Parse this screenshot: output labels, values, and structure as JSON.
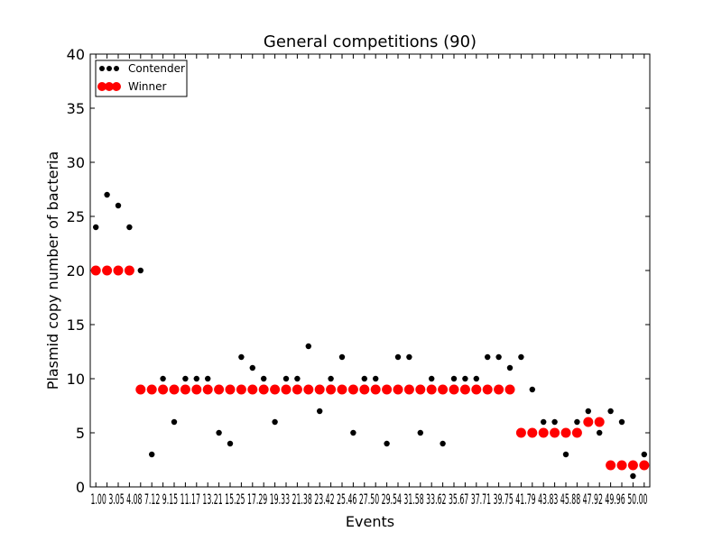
{
  "chart_data": {
    "type": "scatter",
    "title": "General competitions (90)",
    "xlabel": "Events",
    "ylabel": "Plasmid copy number of bacteria",
    "xlim": [
      0.5,
      50.5
    ],
    "ylim": [
      0,
      40
    ],
    "ytick_values": [
      0,
      5,
      10,
      15,
      20,
      25,
      30,
      35,
      40
    ],
    "ytick_labels": [
      "0",
      "5",
      "10",
      "15",
      "20",
      "25",
      "30",
      "35",
      "40"
    ],
    "xtick_labels": "1.00 3.05 4.08 7.12 9.15 11.17 13.21 15.25 17.29 19.33 21.38 23.42 25.46 27.50 29.54 31.58 33.62 35.67 37.71 39.75 41.79 43.83 45.88 47.92 49.96 50.00",
    "legend": {
      "position": "upper-left",
      "entries": [
        {
          "label": "Contender",
          "color": "#000000"
        },
        {
          "label": "Winner",
          "color": "#ff0000"
        }
      ]
    },
    "series": [
      {
        "name": "Contender",
        "color": "#000000",
        "x": [
          1,
          2,
          3,
          4,
          5,
          6,
          7,
          8,
          9,
          10,
          11,
          12,
          13,
          14,
          15,
          16,
          17,
          18,
          19,
          20,
          21,
          22,
          23,
          24,
          25,
          26,
          27,
          28,
          29,
          30,
          31,
          32,
          33,
          34,
          35,
          36,
          37,
          38,
          39,
          40,
          41,
          42,
          43,
          44,
          45,
          46,
          47,
          48,
          49,
          50
        ],
        "y": [
          24,
          27,
          26,
          24,
          20,
          3,
          10,
          6,
          10,
          10,
          10,
          5,
          4,
          12,
          11,
          10,
          6,
          10,
          10,
          13,
          7,
          10,
          12,
          5,
          10,
          10,
          4,
          12,
          12,
          5,
          10,
          4,
          10,
          10,
          10,
          12,
          12,
          11,
          12,
          9,
          6,
          6,
          3,
          6,
          7,
          5,
          7,
          6,
          1,
          3
        ]
      },
      {
        "name": "Winner",
        "color": "#ff0000",
        "x": [
          1,
          2,
          3,
          4,
          5,
          6,
          7,
          8,
          9,
          10,
          11,
          12,
          13,
          14,
          15,
          16,
          17,
          18,
          19,
          20,
          21,
          22,
          23,
          24,
          25,
          26,
          27,
          28,
          29,
          30,
          31,
          32,
          33,
          34,
          35,
          36,
          37,
          38,
          39,
          40,
          41,
          42,
          43,
          44,
          45,
          46,
          47,
          48,
          49,
          50
        ],
        "y": [
          20,
          20,
          20,
          20,
          9,
          9,
          9,
          9,
          9,
          9,
          9,
          9,
          9,
          9,
          9,
          9,
          9,
          9,
          9,
          9,
          9,
          9,
          9,
          9,
          9,
          9,
          9,
          9,
          9,
          9,
          9,
          9,
          9,
          9,
          9,
          9,
          9,
          9,
          5,
          5,
          5,
          5,
          5,
          5,
          6,
          6,
          2,
          2,
          2,
          2
        ]
      }
    ]
  }
}
